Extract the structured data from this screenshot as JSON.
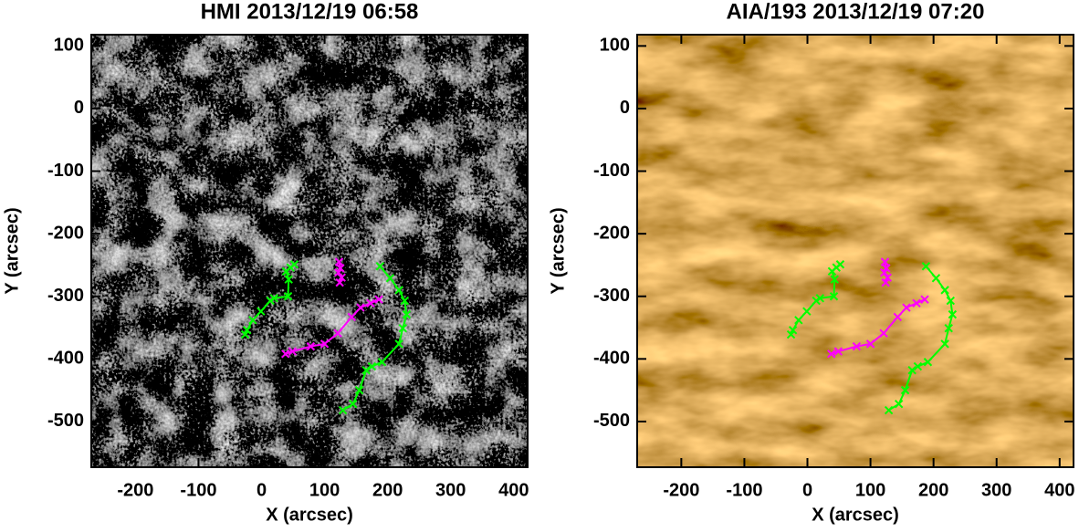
{
  "chart_data": [
    {
      "type": "line",
      "title": "HMI 2013/12/19 06:58",
      "x_label": "X (arcsec)",
      "y_label": "Y (arcsec)",
      "background": "magnetogram",
      "xlim": [
        -270,
        422
      ],
      "ylim": [
        -573,
        118
      ],
      "xticks": [
        -200,
        -100,
        0,
        100,
        200,
        300,
        400
      ],
      "yticks": [
        100,
        0,
        -100,
        -200,
        -300,
        -400,
        -500
      ],
      "series": [
        {
          "color": "#00ff00",
          "x": [
            52,
            46,
            39,
            43,
            42,
            20,
            14,
            -1,
            -14,
            -23,
            -26
          ],
          "values": [
            -249,
            -254,
            -260,
            -273,
            -300,
            -303,
            -307,
            -324,
            -338,
            -354,
            -361
          ]
        },
        {
          "color": "#00ff00",
          "x": [
            188,
            204,
            218,
            227,
            230,
            224,
            218,
            191,
            175,
            166,
            155,
            145,
            129
          ],
          "values": [
            -252,
            -271,
            -290,
            -307,
            -329,
            -351,
            -376,
            -405,
            -412,
            -418,
            -450,
            -472,
            -482
          ]
        },
        {
          "color": "#ff00ff",
          "x": [
            38,
            49,
            78,
            100,
            121,
            143,
            157,
            173,
            186
          ],
          "values": [
            -392,
            -388,
            -380,
            -376,
            -359,
            -333,
            -318,
            -311,
            -305
          ]
        },
        {
          "color": "#ff00ff",
          "x": [
            123,
            125,
            122,
            127,
            124
          ],
          "values": [
            -245,
            -255,
            -262,
            -270,
            -278
          ]
        }
      ]
    },
    {
      "type": "line",
      "title": "AIA/193 2013/12/19 07:20",
      "x_label": "X (arcsec)",
      "y_label": "Y (arcsec)",
      "background": "euv",
      "xlim": [
        -270,
        422
      ],
      "ylim": [
        -573,
        118
      ],
      "xticks": [
        -200,
        -100,
        0,
        100,
        200,
        300,
        400
      ],
      "yticks": [
        100,
        0,
        -100,
        -200,
        -300,
        -400,
        -500
      ],
      "series": [
        {
          "color": "#00ff00",
          "x": [
            52,
            46,
            39,
            43,
            42,
            20,
            14,
            -1,
            -14,
            -23,
            -26
          ],
          "values": [
            -249,
            -254,
            -260,
            -273,
            -300,
            -303,
            -307,
            -324,
            -338,
            -354,
            -361
          ]
        },
        {
          "color": "#00ff00",
          "x": [
            188,
            204,
            218,
            227,
            230,
            224,
            218,
            191,
            175,
            166,
            155,
            145,
            129
          ],
          "values": [
            -252,
            -271,
            -290,
            -307,
            -329,
            -351,
            -376,
            -405,
            -412,
            -418,
            -450,
            -472,
            -482
          ]
        },
        {
          "color": "#ff00ff",
          "x": [
            38,
            49,
            78,
            100,
            121,
            143,
            157,
            173,
            186
          ],
          "values": [
            -392,
            -388,
            -380,
            -376,
            -359,
            -333,
            -318,
            -311,
            -305
          ]
        },
        {
          "color": "#ff00ff",
          "x": [
            123,
            125,
            122,
            127,
            124
          ],
          "values": [
            -245,
            -255,
            -262,
            -270,
            -278
          ]
        }
      ]
    }
  ]
}
